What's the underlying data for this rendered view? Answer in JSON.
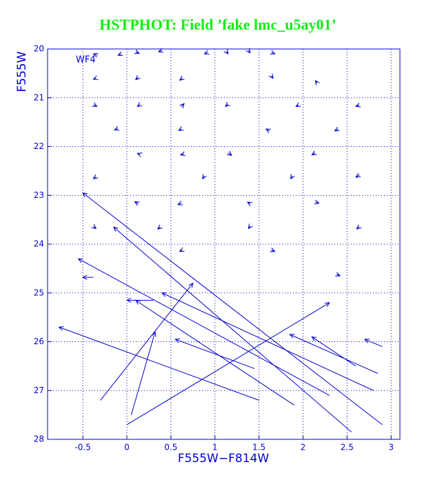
{
  "chart_data": {
    "type": "vector",
    "title": "HSTPHOT: Field ’fake lmc_u5ay01’",
    "x_label": "F555W−F814W",
    "y_label": "F555W",
    "annotation": "WF4",
    "color": "#0000cc",
    "title_color": "#11ee11",
    "xlim": [
      -0.9,
      3.1
    ],
    "ylim": [
      20,
      28
    ],
    "y_inverted": true,
    "xticks": [
      -0.5,
      0,
      0.5,
      1,
      1.5,
      2,
      2.5,
      3
    ],
    "yticks": [
      20,
      21,
      22,
      23,
      24,
      25,
      26,
      27,
      28
    ],
    "grid": true,
    "x_start": [
      -0.33,
      -0.06,
      0.1,
      0.4,
      0.92,
      1.13,
      1.38,
      1.64,
      -0.35,
      0.13,
      0.63,
      1.64,
      2.16,
      -0.38,
      0.15,
      0.62,
      1.15,
      1.95,
      2.64,
      -0.1,
      0.62,
      1.62,
      2.4,
      0.15,
      0.65,
      1.15,
      2.14,
      -0.35,
      0.88,
      1.88,
      2.64,
      0.13,
      0.62,
      1.4,
      2.14,
      -0.38,
      0.38,
      1.4,
      2.64,
      0.63,
      1.64,
      2.38,
      1.5,
      2.9,
      0.0,
      -0.3,
      0.05,
      2.55,
      2.3,
      2.85,
      2.9,
      2.6,
      1.45,
      2.8,
      1.9,
      -0.38,
      0.3
    ],
    "y_start": [
      20.13,
      20.1,
      20.06,
      20.03,
      20.07,
      20.05,
      20.03,
      20.07,
      20.6,
      20.58,
      20.6,
      20.55,
      20.7,
      21.14,
      21.14,
      21.18,
      21.13,
      21.15,
      21.15,
      21.63,
      21.64,
      21.68,
      21.64,
      22.16,
      22.15,
      22.13,
      22.13,
      22.62,
      22.6,
      22.6,
      22.58,
      23.17,
      23.16,
      23.17,
      23.14,
      23.64,
      23.65,
      23.63,
      23.64,
      24.12,
      24.12,
      24.62,
      27.2,
      27.7,
      27.7,
      27.2,
      27.5,
      27.85,
      27.1,
      26.65,
      26.1,
      26.5,
      26.55,
      27.0,
      27.3,
      24.68,
      25.15
    ],
    "x_end": [
      -0.38,
      -0.1,
      0.14,
      0.36,
      0.88,
      1.15,
      1.4,
      1.68,
      -0.38,
      0.1,
      0.6,
      1.66,
      2.14,
      -0.34,
      0.12,
      0.65,
      1.12,
      1.92,
      2.6,
      -0.14,
      0.59,
      1.58,
      2.36,
      0.12,
      0.61,
      1.19,
      2.1,
      -0.38,
      0.86,
      1.86,
      2.6,
      0.09,
      0.58,
      1.37,
      2.18,
      -0.35,
      0.35,
      1.38,
      2.61,
      0.6,
      1.68,
      2.42,
      -0.77,
      -0.5,
      2.3,
      0.75,
      0.32,
      -0.15,
      -0.55,
      1.85,
      2.7,
      2.1,
      0.55,
      0.4,
      0.1,
      -0.5,
      0.0
    ],
    "y_end": [
      20.1,
      20.13,
      20.09,
      20.06,
      20.1,
      20.1,
      20.08,
      20.1,
      20.62,
      20.63,
      20.64,
      20.6,
      20.65,
      21.18,
      21.18,
      21.12,
      21.18,
      21.18,
      21.18,
      21.66,
      21.67,
      21.64,
      21.68,
      22.14,
      22.17,
      22.18,
      22.17,
      22.66,
      22.66,
      22.66,
      22.63,
      23.13,
      23.19,
      23.14,
      23.16,
      23.68,
      23.69,
      23.68,
      23.69,
      24.15,
      24.15,
      24.65,
      25.7,
      22.95,
      25.2,
      24.8,
      25.8,
      23.65,
      24.3,
      25.85,
      25.95,
      25.9,
      25.95,
      25.0,
      25.15,
      24.68,
      25.15
    ]
  }
}
